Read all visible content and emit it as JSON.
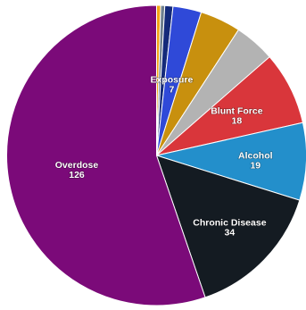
{
  "chart_data": {
    "type": "pie",
    "start_angle_deg": 0,
    "direction": "clockwise",
    "slices": [
      {
        "label": "",
        "value": 1,
        "color": "#f2a516"
      },
      {
        "label": "",
        "value": 1,
        "color": "#6e7f8d"
      },
      {
        "label": "",
        "value": 2,
        "color": "#142a7a"
      },
      {
        "label": "Exposure",
        "value": 7,
        "color": "#2f49d8",
        "show_label": true,
        "show_value": true
      },
      {
        "label": "",
        "value": 10,
        "color": "#c8900e"
      },
      {
        "label": "",
        "value": 10,
        "color": "#b3b3b3"
      },
      {
        "label": "Blunt Force",
        "value": 18,
        "color": "#d9363b",
        "show_label": true,
        "show_value": true
      },
      {
        "label": "Alcohol",
        "value": 19,
        "color": "#238fcb",
        "show_label": true,
        "show_value": true
      },
      {
        "label": "Chronic Disease",
        "value": 34,
        "color": "#141b22",
        "show_label": true,
        "show_value": true
      },
      {
        "label": "Overdose",
        "value": 126,
        "color": "#7b0a79",
        "show_label": true,
        "show_value": true
      }
    ]
  }
}
